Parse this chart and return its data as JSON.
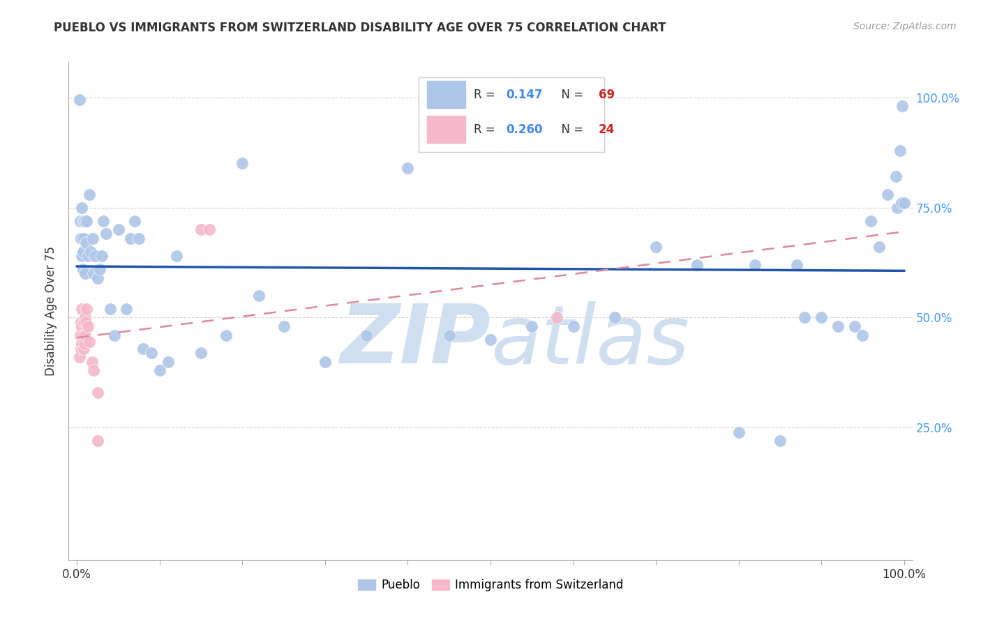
{
  "title": "PUEBLO VS IMMIGRANTS FROM SWITZERLAND DISABILITY AGE OVER 75 CORRELATION CHART",
  "source": "Source: ZipAtlas.com",
  "ylabel": "Disability Age Over 75",
  "legend_labels": [
    "Pueblo",
    "Immigrants from Switzerland"
  ],
  "r_pueblo": 0.147,
  "n_pueblo": 69,
  "r_swiss": 0.26,
  "n_swiss": 24,
  "pueblo_color": "#aec6e8",
  "swiss_color": "#f4b8c8",
  "pueblo_line_color": "#2255aa",
  "swiss_line_color": "#dd8899",
  "background_color": "#ffffff",
  "grid_color": "#cccccc",
  "watermark_color": "#d0dff0",
  "pueblo_x": [
    0.003,
    0.004,
    0.005,
    0.006,
    0.006,
    0.007,
    0.007,
    0.008,
    0.008,
    0.009,
    0.01,
    0.011,
    0.012,
    0.013,
    0.015,
    0.017,
    0.019,
    0.02,
    0.022,
    0.025,
    0.028,
    0.03,
    0.032,
    0.035,
    0.04,
    0.045,
    0.05,
    0.06,
    0.065,
    0.07,
    0.075,
    0.08,
    0.09,
    0.1,
    0.11,
    0.12,
    0.15,
    0.18,
    0.2,
    0.22,
    0.25,
    0.3,
    0.35,
    0.4,
    0.45,
    0.5,
    0.55,
    0.6,
    0.65,
    0.7,
    0.75,
    0.8,
    0.82,
    0.85,
    0.87,
    0.88,
    0.9,
    0.92,
    0.94,
    0.95,
    0.96,
    0.97,
    0.98,
    0.99,
    0.992,
    0.995,
    0.997,
    0.998,
    1.0
  ],
  "pueblo_y": [
    0.995,
    0.72,
    0.68,
    0.64,
    0.75,
    0.61,
    0.65,
    0.72,
    0.68,
    0.72,
    0.6,
    0.67,
    0.72,
    0.64,
    0.78,
    0.65,
    0.68,
    0.6,
    0.64,
    0.59,
    0.61,
    0.64,
    0.72,
    0.69,
    0.52,
    0.46,
    0.7,
    0.52,
    0.68,
    0.72,
    0.68,
    0.43,
    0.42,
    0.38,
    0.4,
    0.64,
    0.42,
    0.46,
    0.85,
    0.55,
    0.48,
    0.4,
    0.46,
    0.84,
    0.46,
    0.45,
    0.48,
    0.48,
    0.5,
    0.66,
    0.62,
    0.24,
    0.62,
    0.22,
    0.62,
    0.5,
    0.5,
    0.48,
    0.48,
    0.46,
    0.72,
    0.66,
    0.78,
    0.82,
    0.75,
    0.88,
    0.76,
    0.98,
    0.76
  ],
  "swiss_x": [
    0.003,
    0.004,
    0.005,
    0.005,
    0.006,
    0.006,
    0.006,
    0.007,
    0.008,
    0.008,
    0.009,
    0.01,
    0.01,
    0.011,
    0.012,
    0.013,
    0.015,
    0.018,
    0.02,
    0.025,
    0.025,
    0.15,
    0.16,
    0.58
  ],
  "swiss_y": [
    0.41,
    0.46,
    0.43,
    0.49,
    0.44,
    0.48,
    0.52,
    0.46,
    0.49,
    0.43,
    0.44,
    0.46,
    0.5,
    0.49,
    0.52,
    0.48,
    0.445,
    0.4,
    0.38,
    0.33,
    0.22,
    0.7,
    0.7,
    0.5
  ],
  "ytick_vals": [
    0.25,
    0.5,
    0.75,
    1.0
  ],
  "ytick_labels": [
    "25.0%",
    "50.0%",
    "75.0%",
    "100.0%"
  ],
  "xlim": [
    -0.01,
    1.01
  ],
  "ylim": [
    -0.05,
    1.08
  ]
}
